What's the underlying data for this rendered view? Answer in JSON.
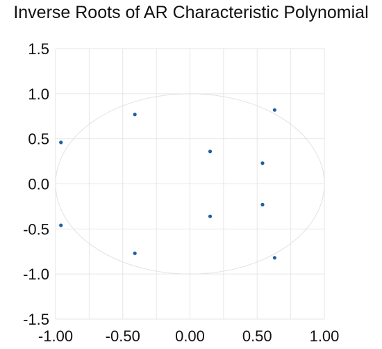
{
  "chart_data": {
    "type": "scatter",
    "title": "Inverse Roots of AR Characteristic Polynomial",
    "xlabel": "",
    "ylabel": "",
    "xlim": [
      -1.0,
      1.0
    ],
    "ylim": [
      -1.5,
      1.5
    ],
    "xticks": [
      -1.0,
      -0.5,
      0.0,
      0.5,
      1.0
    ],
    "xtick_labels": [
      "-1.00",
      "-0.50",
      "0.00",
      "0.50",
      "1.00"
    ],
    "yticks": [
      1.5,
      1.0,
      0.5,
      0.0,
      -0.5,
      -1.0,
      -1.5
    ],
    "ytick_labels": [
      "1.5",
      "1.0",
      "0.5",
      "0.0",
      "-0.5",
      "-1.0",
      "-1.5"
    ],
    "grid": true,
    "unit_circle": true,
    "points": [
      {
        "x": -0.96,
        "y": 0.46
      },
      {
        "x": -0.96,
        "y": -0.46
      },
      {
        "x": -0.41,
        "y": 0.77
      },
      {
        "x": -0.41,
        "y": -0.77
      },
      {
        "x": 0.15,
        "y": 0.36
      },
      {
        "x": 0.15,
        "y": -0.36
      },
      {
        "x": 0.54,
        "y": 0.23
      },
      {
        "x": 0.54,
        "y": -0.23
      },
      {
        "x": 0.63,
        "y": 0.82
      },
      {
        "x": 0.63,
        "y": -0.82
      }
    ],
    "colors": {
      "points": "#1f5fa0",
      "grid": "#e6e6e6",
      "circle": "#e2e2e2"
    }
  }
}
